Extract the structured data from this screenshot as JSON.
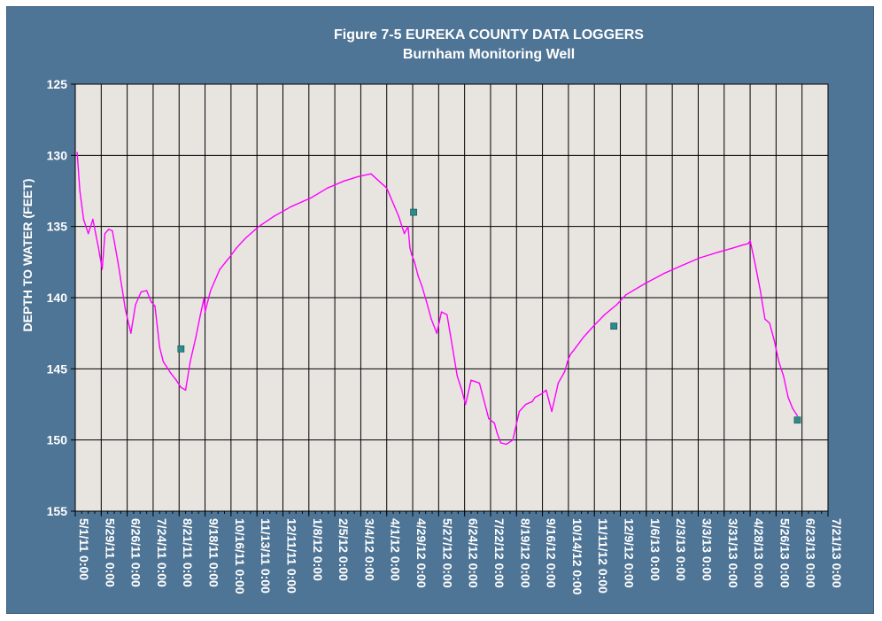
{
  "chart_data": {
    "type": "line",
    "title": "Figure 7-5 EUREKA COUNTY DATA LOGGERS",
    "subtitle": "Burnham Monitoring Well",
    "ylabel": "DEPTH TO WATER (FEET)",
    "xlabel": "",
    "ylim": [
      155,
      125
    ],
    "y_inverted": true,
    "yticks": [
      125,
      130,
      135,
      140,
      145,
      150,
      155
    ],
    "xlim": [
      "5/1/11",
      "7/21/13"
    ],
    "xtick_labels": [
      "5/1/11 0:00",
      "5/29/11 0:00",
      "6/26/11 0:00",
      "7/24/11 0:00",
      "8/21/11 0:00",
      "9/18/11 0:00",
      "10/16/11 0:00",
      "11/13/11 0:00",
      "12/11/11 0:00",
      "1/8/12 0:00",
      "2/5/12 0:00",
      "3/4/12 0:00",
      "4/1/12 0:00",
      "4/29/12 0:00",
      "5/27/12 0:00",
      "6/24/12 0:00",
      "7/22/12 0:00",
      "8/19/12 0:00",
      "9/16/12 0:00",
      "10/14/12 0:00",
      "11/11/12 0:00",
      "12/9/12 0:00",
      "1/6/13 0:00",
      "2/3/13 0:00",
      "3/3/13 0:00",
      "3/31/13 0:00",
      "4/28/13 0:00",
      "5/26/13 0:00",
      "6/23/13 0:00",
      "7/21/13 0:00"
    ],
    "grid": true,
    "colors": {
      "frame": "#4f7596",
      "plot_bg": "#e8e5e1",
      "series": "#ff00ff",
      "marker": "#2e8b8b",
      "text": "#ffffff"
    },
    "series": [
      {
        "style": "line",
        "x": [
          "5/3/11",
          "5/6/11",
          "5/10/11",
          "5/15/11",
          "5/20/11",
          "5/26/11",
          "5/30/11",
          "6/2/11",
          "6/6/11",
          "6/10/11",
          "6/16/11",
          "6/24/11",
          "6/30/11",
          "7/5/11",
          "7/11/11",
          "7/17/11",
          "7/22/11",
          "7/26/11",
          "7/31/11",
          "8/4/11",
          "8/7/11",
          "8/12/11",
          "8/18/11",
          "8/23/11",
          "8/28/11",
          "9/2/11",
          "9/8/11",
          "9/13/11",
          "9/17/11",
          "9/18/11",
          "9/24/11",
          "10/4/11",
          "10/14/11",
          "10/22/11",
          "11/1/11",
          "11/15/11",
          "12/1/11",
          "12/20/11",
          "1/10/12",
          "1/28/12",
          "2/15/12",
          "3/1/12",
          "3/15/12",
          "4/1/12",
          "4/14/12",
          "4/20/12",
          "4/24/12",
          "4/26/12",
          "4/28/12",
          "5/1/12",
          "5/5/12",
          "5/9/12",
          "5/14/12",
          "5/19/12",
          "5/25/12",
          "5/30/12",
          "6/5/12",
          "6/11/12",
          "6/16/12",
          "6/21/12",
          "6/25/12",
          "7/1/12",
          "7/10/12",
          "7/20/12",
          "7/26/12",
          "7/29/12",
          "8/2/12",
          "8/8/12",
          "8/15/12",
          "8/22/12",
          "8/29/12",
          "9/5/12",
          "9/8/12",
          "9/14/12",
          "9/20/12",
          "9/26/12",
          "10/3/12",
          "10/10/12",
          "10/13/12",
          "10/16/12",
          "10/22/12",
          "10/30/12",
          "11/10/12",
          "11/22/12",
          "12/5/12",
          "12/15/12",
          "1/5/13",
          "1/25/13",
          "2/15/13",
          "3/5/13",
          "3/25/13",
          "4/10/13",
          "4/20/13",
          "4/26/13",
          "4/28/13",
          "5/3/13",
          "5/9/13",
          "5/14/13",
          "5/19/13",
          "5/24/13",
          "5/29/13",
          "6/3/13",
          "6/8/13",
          "6/13/13",
          "6/18/13"
        ],
        "y": [
          129.8,
          132.5,
          134.5,
          135.5,
          134.5,
          136.5,
          138.0,
          135.5,
          135.2,
          135.3,
          137.5,
          140.8,
          142.5,
          140.5,
          139.6,
          139.5,
          140.3,
          140.6,
          143.5,
          144.5,
          144.8,
          145.3,
          145.8,
          146.3,
          146.5,
          144.5,
          142.8,
          141.2,
          140.0,
          141.0,
          139.5,
          138.0,
          137.2,
          136.5,
          135.8,
          135.0,
          134.3,
          133.6,
          133.0,
          132.3,
          131.8,
          131.5,
          131.3,
          132.3,
          134.3,
          135.5,
          135.0,
          136.5,
          137.0,
          137.5,
          138.5,
          139.2,
          140.3,
          141.5,
          142.5,
          141.0,
          141.2,
          143.5,
          145.5,
          146.5,
          147.5,
          145.8,
          146.0,
          148.5,
          148.8,
          149.5,
          150.2,
          150.3,
          150.0,
          148.0,
          147.5,
          147.3,
          147.0,
          146.8,
          146.5,
          148.0,
          146.0,
          145.2,
          144.5,
          144.0,
          143.5,
          142.8,
          142.0,
          141.2,
          140.5,
          139.8,
          139.0,
          138.3,
          137.7,
          137.2,
          136.8,
          136.5,
          136.3,
          136.2,
          136.0,
          137.5,
          139.5,
          141.5,
          141.8,
          143.0,
          144.5,
          145.5,
          147.0,
          147.8,
          148.3
        ]
      },
      {
        "style": "markers",
        "x": [
          "8/23/11",
          "4/30/12",
          "12/2/12",
          "6/18/13"
        ],
        "y": [
          143.6,
          134.0,
          142.0,
          148.6
        ]
      }
    ]
  }
}
